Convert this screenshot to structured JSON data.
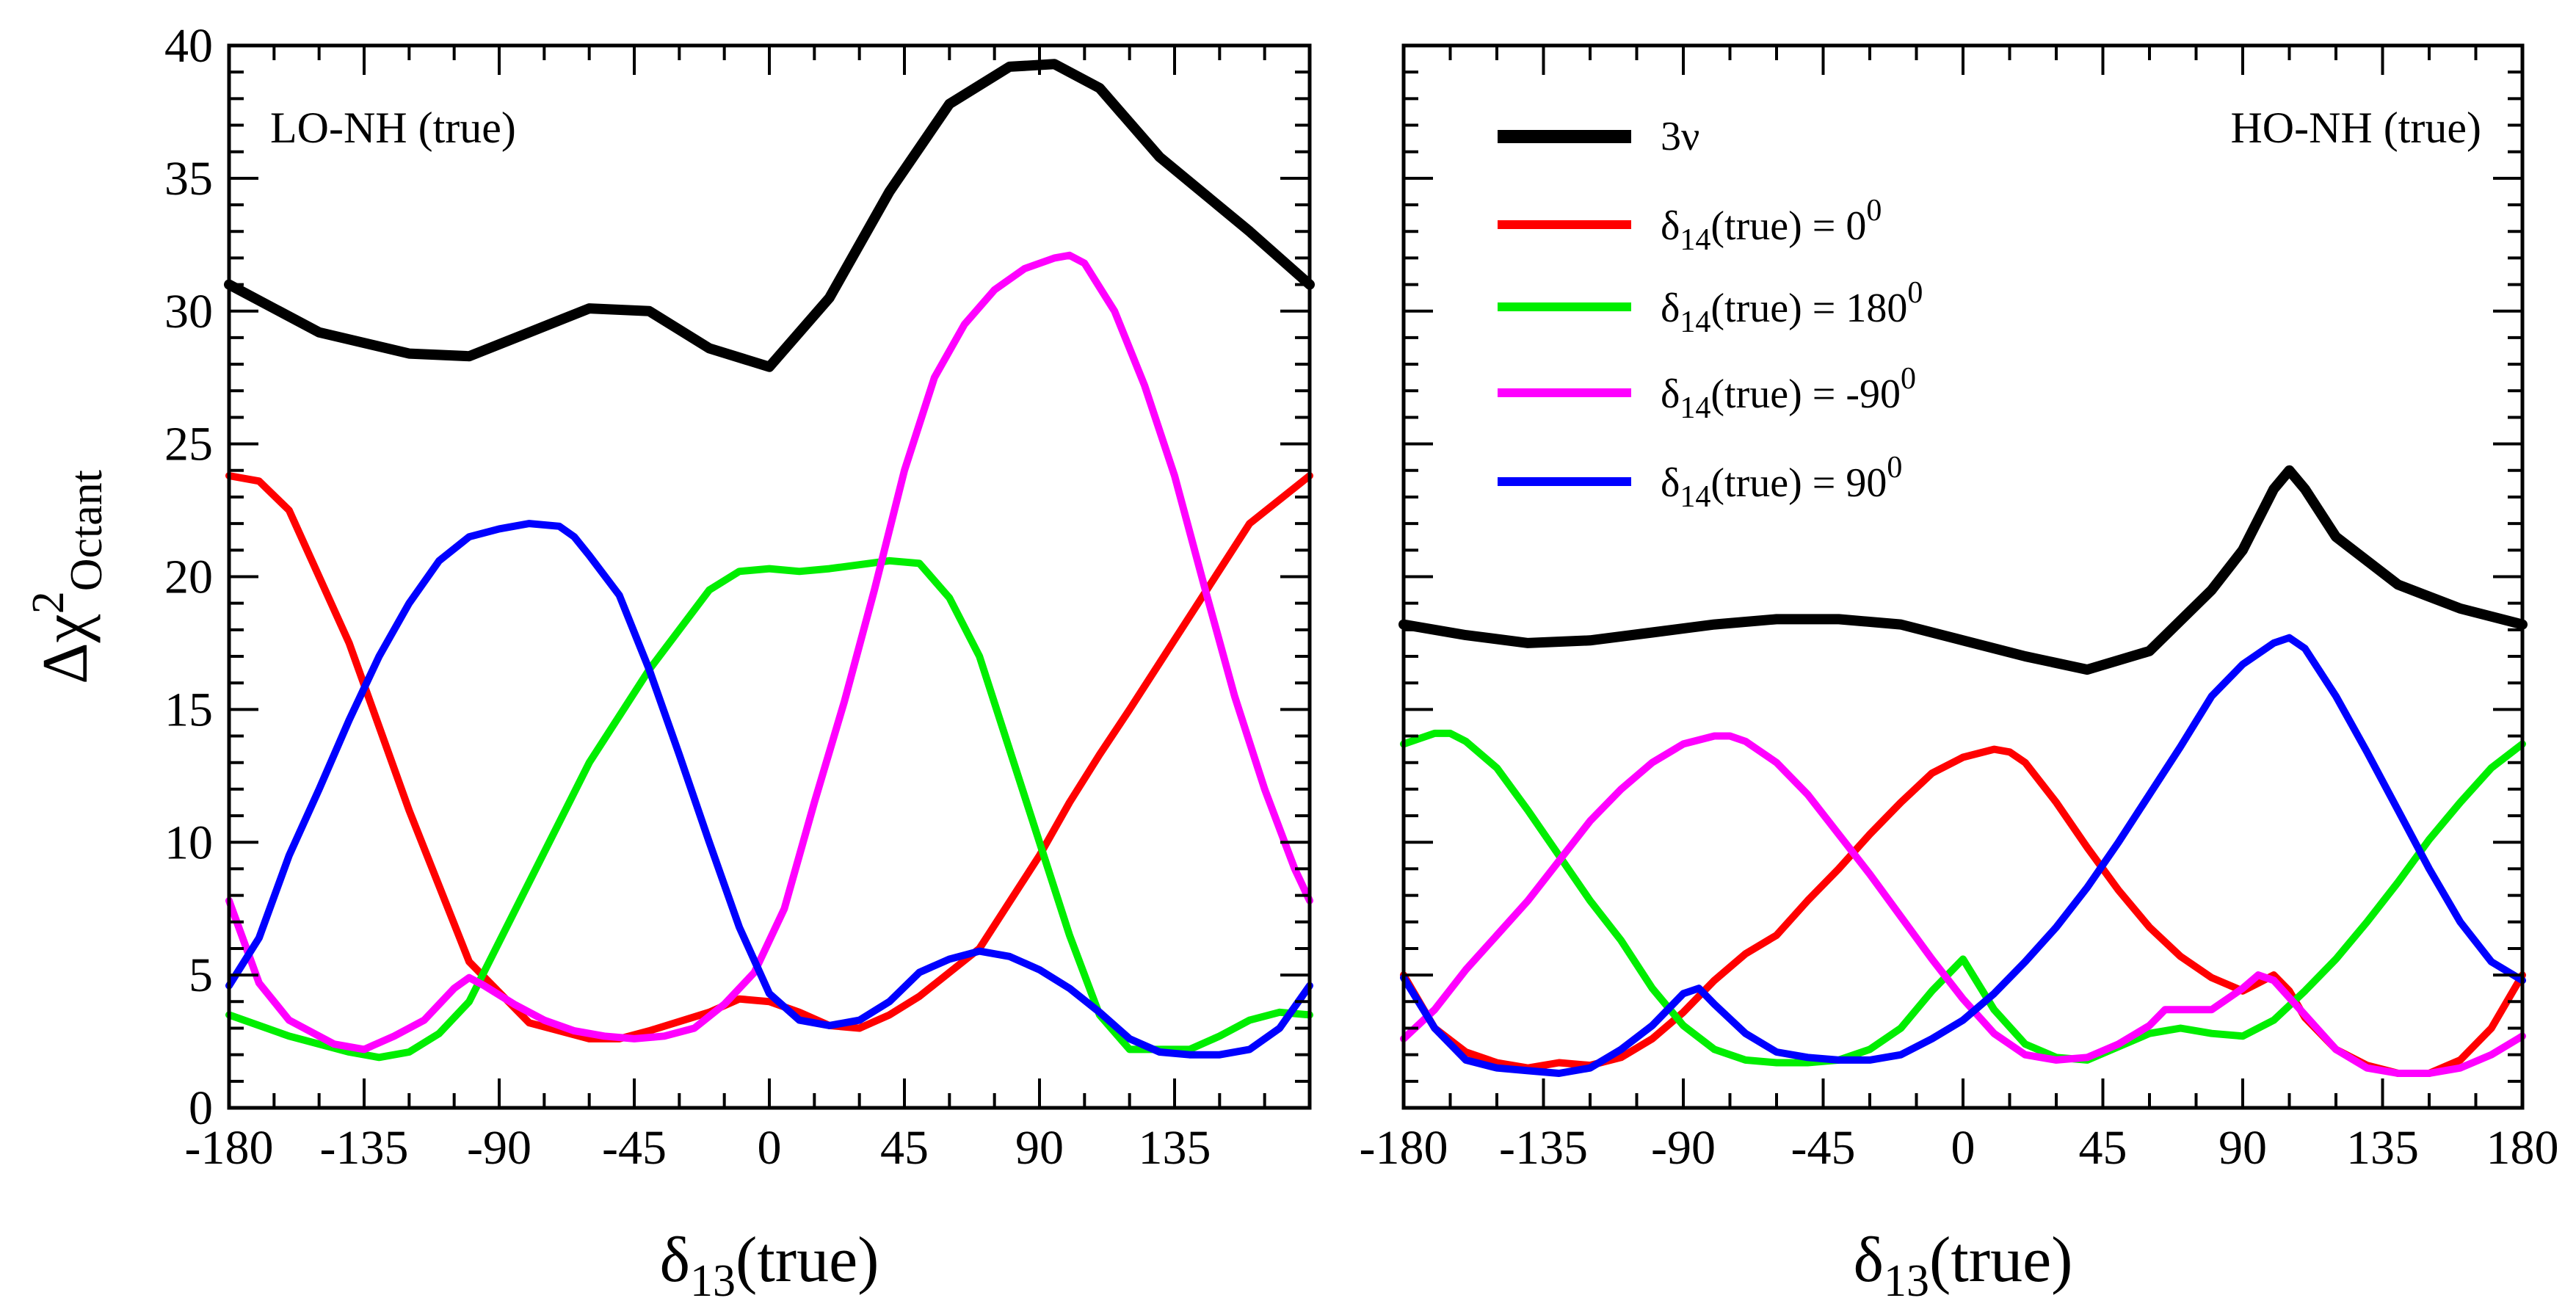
{
  "chart_data": [
    {
      "type": "line",
      "panel_label": "LO-NH (true)",
      "xlabel": "δ13(true)",
      "ylabel": "Δχ2Octant",
      "xlim": [
        -180,
        180
      ],
      "ylim": [
        0,
        40
      ],
      "x_tick_labels": [
        "-180",
        "-135",
        "-90",
        "-45",
        "0",
        "45",
        "90",
        "135"
      ],
      "x_tick_values": [
        -180,
        -135,
        -90,
        -45,
        0,
        45,
        90,
        135
      ],
      "y_tick_labels": [
        "0",
        "5",
        "10",
        "15",
        "20",
        "25",
        "30",
        "35",
        "40"
      ],
      "y_tick_values": [
        0,
        5,
        10,
        15,
        20,
        25,
        30,
        35,
        40
      ],
      "series": [
        {
          "name": "3ν",
          "color": "#000000",
          "x": [
            -180,
            -150,
            -120,
            -100,
            -80,
            -60,
            -40,
            -20,
            0,
            20,
            40,
            60,
            80,
            95,
            110,
            130,
            160,
            180
          ],
          "y": [
            31,
            29.2,
            28.4,
            28.3,
            29.2,
            30.1,
            30,
            28.6,
            27.9,
            30.5,
            34.5,
            37.8,
            39.2,
            39.3,
            38.4,
            35.8,
            33,
            31
          ]
        },
        {
          "name": "δ14(true) = 00",
          "color": "#ff0000",
          "x": [
            -180,
            -170,
            -160,
            -140,
            -120,
            -100,
            -80,
            -60,
            -50,
            -40,
            -20,
            -10,
            0,
            10,
            20,
            30,
            40,
            50,
            70,
            90,
            100,
            110,
            120,
            140,
            160,
            180
          ],
          "y": [
            23.8,
            23.6,
            22.5,
            17.5,
            11.2,
            5.5,
            3.2,
            2.6,
            2.6,
            2.9,
            3.6,
            4.1,
            4,
            3.6,
            3.1,
            3,
            3.5,
            4.2,
            6,
            9.5,
            11.5,
            13.3,
            15,
            18.5,
            22,
            23.8
          ]
        },
        {
          "name": "δ14(true) = 1800",
          "color": "#00ee00",
          "x": [
            -180,
            -160,
            -140,
            -130,
            -120,
            -110,
            -100,
            -80,
            -60,
            -40,
            -20,
            -10,
            0,
            10,
            20,
            40,
            50,
            60,
            70,
            80,
            90,
            100,
            110,
            120,
            140,
            150,
            160,
            170,
            180
          ],
          "y": [
            3.5,
            2.7,
            2.1,
            1.9,
            2.1,
            2.8,
            4,
            8.5,
            13,
            16.5,
            19.5,
            20.2,
            20.3,
            20.2,
            20.3,
            20.6,
            20.5,
            19.2,
            17,
            13.5,
            10,
            6.5,
            3.5,
            2.2,
            2.2,
            2.7,
            3.3,
            3.6,
            3.5
          ]
        },
        {
          "name": "δ14(true) = -900",
          "color": "#ff00ff",
          "x": [
            -180,
            -170,
            -160,
            -145,
            -135,
            -125,
            -115,
            -105,
            -100,
            -95,
            -85,
            -75,
            -65,
            -55,
            -45,
            -35,
            -25,
            -15,
            -5,
            5,
            15,
            25,
            35,
            45,
            55,
            65,
            75,
            85,
            95,
            100,
            105,
            115,
            125,
            135,
            145,
            155,
            165,
            175,
            180
          ],
          "y": [
            7.8,
            4.7,
            3.3,
            2.4,
            2.2,
            2.7,
            3.3,
            4.5,
            4.9,
            4.6,
            3.9,
            3.3,
            2.9,
            2.7,
            2.6,
            2.7,
            3,
            3.9,
            5.1,
            7.5,
            11.5,
            15.3,
            19.5,
            24,
            27.5,
            29.5,
            30.8,
            31.6,
            32,
            32.1,
            31.8,
            30,
            27.2,
            23.8,
            19.6,
            15.5,
            12,
            9,
            7.8
          ]
        },
        {
          "name": "δ14(true) = 900",
          "color": "#0000ff",
          "x": [
            -180,
            -170,
            -160,
            -150,
            -140,
            -130,
            -120,
            -110,
            -100,
            -90,
            -80,
            -70,
            -65,
            -60,
            -50,
            -40,
            -30,
            -20,
            -10,
            0,
            10,
            20,
            30,
            40,
            50,
            60,
            70,
            80,
            90,
            100,
            110,
            120,
            130,
            140,
            150,
            160,
            170,
            180
          ],
          "y": [
            4.6,
            6.4,
            9.5,
            12,
            14.6,
            17,
            19,
            20.6,
            21.5,
            21.8,
            22,
            21.9,
            21.5,
            20.8,
            19.3,
            16.5,
            13.3,
            10,
            6.8,
            4.3,
            3.3,
            3.1,
            3.3,
            4,
            5.1,
            5.6,
            5.9,
            5.7,
            5.2,
            4.5,
            3.6,
            2.6,
            2.1,
            2,
            2,
            2.2,
            3,
            4.6
          ]
        }
      ]
    },
    {
      "type": "line",
      "panel_label": "HO-NH (true)",
      "xlabel": "δ13(true)",
      "xlim": [
        -180,
        180
      ],
      "ylim": [
        0,
        40
      ],
      "x_tick_labels": [
        "-180",
        "-135",
        "-90",
        "-45",
        "0",
        "45",
        "90",
        "135",
        "180"
      ],
      "x_tick_values": [
        -180,
        -135,
        -90,
        -45,
        0,
        45,
        90,
        135,
        180
      ],
      "series": [
        {
          "name": "3ν",
          "color": "#000000",
          "x": [
            -180,
            -160,
            -140,
            -120,
            -100,
            -80,
            -60,
            -40,
            -20,
            0,
            20,
            40,
            60,
            80,
            90,
            100,
            105,
            110,
            120,
            140,
            160,
            180
          ],
          "y": [
            18.2,
            17.8,
            17.5,
            17.6,
            17.9,
            18.2,
            18.4,
            18.4,
            18.2,
            17.6,
            17,
            16.5,
            17.2,
            19.5,
            21,
            23.3,
            24,
            23.3,
            21.5,
            19.7,
            18.8,
            18.2
          ]
        },
        {
          "name": "δ14(true) = 00",
          "color": "#ff0000",
          "x": [
            -180,
            -170,
            -160,
            -150,
            -140,
            -130,
            -120,
            -110,
            -100,
            -90,
            -80,
            -70,
            -60,
            -50,
            -40,
            -30,
            -20,
            -10,
            0,
            10,
            15,
            20,
            30,
            40,
            50,
            60,
            70,
            80,
            90,
            95,
            100,
            105,
            110,
            120,
            130,
            140,
            150,
            160,
            170,
            180
          ],
          "y": [
            5,
            3,
            2.1,
            1.7,
            1.5,
            1.7,
            1.6,
            1.9,
            2.6,
            3.6,
            4.8,
            5.8,
            6.5,
            7.8,
            9,
            10.3,
            11.5,
            12.6,
            13.2,
            13.5,
            13.4,
            13,
            11.5,
            9.8,
            8.2,
            6.8,
            5.7,
            4.9,
            4.4,
            4.7,
            5,
            4.4,
            3.4,
            2.2,
            1.6,
            1.3,
            1.3,
            1.8,
            3,
            5
          ]
        },
        {
          "name": "δ14(true) = 1800",
          "color": "#00ee00",
          "x": [
            -180,
            -170,
            -165,
            -160,
            -150,
            -140,
            -130,
            -120,
            -110,
            -100,
            -90,
            -80,
            -70,
            -60,
            -50,
            -40,
            -30,
            -20,
            -10,
            0,
            10,
            20,
            30,
            40,
            50,
            60,
            70,
            80,
            90,
            100,
            110,
            120,
            130,
            140,
            150,
            160,
            170,
            180
          ],
          "y": [
            13.7,
            14.1,
            14.1,
            13.8,
            12.8,
            11.2,
            9.5,
            7.8,
            6.3,
            4.5,
            3.1,
            2.2,
            1.8,
            1.7,
            1.7,
            1.8,
            2.2,
            3,
            4.4,
            5.6,
            3.7,
            2.4,
            1.9,
            1.8,
            2.3,
            2.8,
            3,
            2.8,
            2.7,
            3.3,
            4.4,
            5.6,
            7,
            8.5,
            10.1,
            11.5,
            12.8,
            13.7
          ]
        },
        {
          "name": "δ14(true) = -900",
          "color": "#ff00ff",
          "x": [
            -180,
            -170,
            -160,
            -150,
            -140,
            -130,
            -120,
            -110,
            -100,
            -90,
            -80,
            -75,
            -70,
            -60,
            -50,
            -40,
            -30,
            -20,
            -10,
            0,
            10,
            20,
            30,
            40,
            50,
            60,
            65,
            70,
            80,
            90,
            95,
            100,
            110,
            120,
            130,
            140,
            150,
            160,
            170,
            180
          ],
          "y": [
            2.6,
            3.7,
            5.2,
            6.5,
            7.8,
            9.3,
            10.8,
            12,
            13,
            13.7,
            14,
            14,
            13.8,
            13,
            11.8,
            10.3,
            8.8,
            7.2,
            5.6,
            4.1,
            2.8,
            2,
            1.8,
            1.9,
            2.4,
            3.1,
            3.7,
            3.7,
            3.7,
            4.5,
            5,
            4.8,
            3.5,
            2.2,
            1.5,
            1.3,
            1.3,
            1.5,
            2,
            2.7
          ]
        },
        {
          "name": "δ14(true) = 900",
          "color": "#0000ff",
          "x": [
            -180,
            -170,
            -160,
            -150,
            -140,
            -130,
            -120,
            -110,
            -100,
            -90,
            -85,
            -80,
            -70,
            -60,
            -50,
            -40,
            -30,
            -20,
            -10,
            0,
            10,
            20,
            30,
            40,
            50,
            60,
            70,
            80,
            90,
            100,
            105,
            110,
            120,
            130,
            140,
            150,
            160,
            170,
            180
          ],
          "y": [
            4.9,
            3,
            1.8,
            1.5,
            1.4,
            1.3,
            1.5,
            2.2,
            3.1,
            4.3,
            4.5,
            3.9,
            2.8,
            2.1,
            1.9,
            1.8,
            1.8,
            2,
            2.6,
            3.3,
            4.3,
            5.5,
            6.8,
            8.3,
            10,
            11.8,
            13.6,
            15.5,
            16.7,
            17.5,
            17.7,
            17.3,
            15.5,
            13.4,
            11.2,
            9,
            7,
            5.5,
            4.8
          ]
        }
      ]
    }
  ],
  "legend": {
    "items": [
      {
        "label": "3ν",
        "color": "#000000"
      },
      {
        "label_main": "δ",
        "label_sub": "14",
        "label_rest": "(true) = ",
        "label_num": "0",
        "label_sup": "0",
        "color": "#ff0000"
      },
      {
        "label_main": "δ",
        "label_sub": "14",
        "label_rest": "(true) = ",
        "label_num": "180",
        "label_sup": "0",
        "color": "#00ee00"
      },
      {
        "label_main": "δ",
        "label_sub": "14",
        "label_rest": "(true) = ",
        "label_num": "-90",
        "label_sup": "0",
        "color": "#ff00ff"
      },
      {
        "label_main": "δ",
        "label_sub": "14",
        "label_rest": "(true) = ",
        "label_num": "90",
        "label_sup": "0",
        "color": "#0000ff"
      }
    ]
  },
  "y_axis_title": {
    "main": "Δχ",
    "sup": "2",
    "sub": "Octant"
  },
  "x_axis_title": {
    "main": "δ",
    "sub": "13",
    "rest": "(true)"
  }
}
